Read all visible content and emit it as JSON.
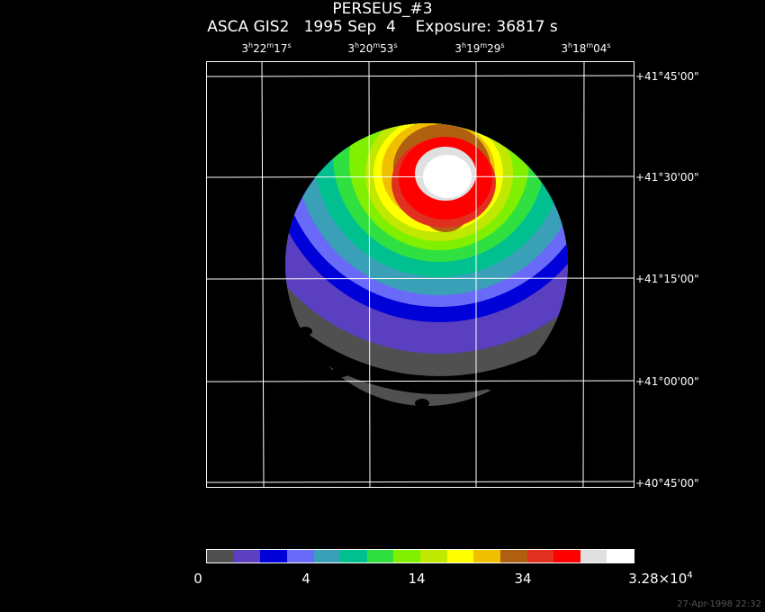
{
  "title": "PERSEUS_#3",
  "subtitle": "ASCA GIS2   1995 Sep  4    Exposure: 36817 s",
  "ra_ticks": [
    {
      "h": "3",
      "m": "22",
      "s": "17"
    },
    {
      "h": "3",
      "m": "20",
      "s": "53"
    },
    {
      "h": "3",
      "m": "19",
      "s": "29"
    },
    {
      "h": "3",
      "m": "18",
      "s": "04"
    }
  ],
  "dec_ticks": [
    "+41°45'00\"",
    "+41°30'00\"",
    "+41°15'00\"",
    "+41°00'00\"",
    "+40°45'00\""
  ],
  "colorbar": {
    "colors": [
      "#505050",
      "#5a3fc0",
      "#0000d8",
      "#6a6af8",
      "#3aa0b8",
      "#00c090",
      "#30e040",
      "#80f000",
      "#c0e800",
      "#ffff00",
      "#f0c000",
      "#b06010",
      "#e03020",
      "#ff0000",
      "#e0e0e0",
      "#ffffff"
    ],
    "labels": [
      "0",
      "4",
      "14",
      "34"
    ],
    "max_label_mantissa": "3.28×10",
    "max_label_exp": "4"
  },
  "timestamp": "27-Apr-1998 22:32"
}
